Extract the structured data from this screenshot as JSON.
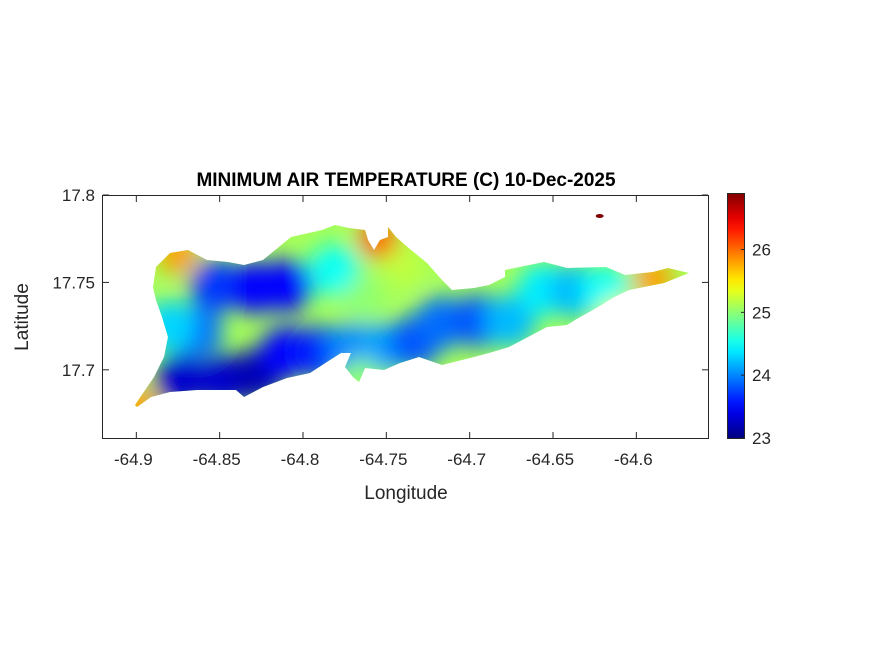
{
  "chart_data": {
    "type": "heatmap",
    "title": "MINIMUM AIR TEMPERATURE (C) 10-Dec-2025",
    "xlabel": "Longitude",
    "ylabel": "Latitude",
    "xlim": [
      -64.92,
      -64.557
    ],
    "ylim": [
      17.661,
      17.8
    ],
    "xticks": [
      -64.9,
      -64.85,
      -64.8,
      -64.75,
      -64.7,
      -64.65,
      -64.6
    ],
    "xtick_labels": [
      "-64.9",
      "-64.85",
      "-64.8",
      "-64.75",
      "-64.7",
      "-64.65",
      "-64.6"
    ],
    "yticks": [
      17.7,
      17.75,
      17.8
    ],
    "ytick_labels": [
      "17.7",
      "17.75",
      "17.8"
    ],
    "colormap": "jet",
    "clim": [
      23,
      26.9
    ],
    "colorbar_ticks": [
      23,
      24,
      25,
      26
    ],
    "colorbar_tick_labels": [
      "23",
      "24",
      "25",
      "26"
    ],
    "colorbar_location": "right",
    "base_value": 25.1,
    "samples": [
      {
        "lon": -64.852,
        "lat": 17.748,
        "value": 23.7
      },
      {
        "lon": -64.829,
        "lat": 17.747,
        "value": 23.5
      },
      {
        "lon": -64.81,
        "lat": 17.748,
        "value": 23.5
      },
      {
        "lon": -64.864,
        "lat": 17.722,
        "value": 23.9
      },
      {
        "lon": -64.88,
        "lat": 17.725,
        "value": 24.3
      },
      {
        "lon": -64.873,
        "lat": 17.694,
        "value": 23.3
      },
      {
        "lon": -64.848,
        "lat": 17.694,
        "value": 23.3
      },
      {
        "lon": -64.828,
        "lat": 17.697,
        "value": 23.2
      },
      {
        "lon": -64.81,
        "lat": 17.71,
        "value": 23.5
      },
      {
        "lon": -64.79,
        "lat": 17.71,
        "value": 23.6
      },
      {
        "lon": -64.771,
        "lat": 17.712,
        "value": 24.0
      },
      {
        "lon": -64.754,
        "lat": 17.712,
        "value": 24.1
      },
      {
        "lon": -64.733,
        "lat": 17.716,
        "value": 23.8
      },
      {
        "lon": -64.717,
        "lat": 17.727,
        "value": 23.9
      },
      {
        "lon": -64.695,
        "lat": 17.728,
        "value": 23.8
      },
      {
        "lon": -64.676,
        "lat": 17.728,
        "value": 24.2
      },
      {
        "lon": -64.781,
        "lat": 17.757,
        "value": 24.5
      },
      {
        "lon": -64.764,
        "lat": 17.741,
        "value": 25.0
      },
      {
        "lon": -64.656,
        "lat": 17.746,
        "value": 24.4
      },
      {
        "lon": -64.637,
        "lat": 17.745,
        "value": 24.2
      },
      {
        "lon": -64.618,
        "lat": 17.745,
        "value": 24.5
      },
      {
        "lon": -64.74,
        "lat": 17.76,
        "value": 25.2
      },
      {
        "lon": -64.59,
        "lat": 17.752,
        "value": 25.8
      },
      {
        "lon": -64.875,
        "lat": 17.766,
        "value": 25.8
      },
      {
        "lon": -64.755,
        "lat": 17.775,
        "value": 26.0
      },
      {
        "lon": -64.899,
        "lat": 17.679,
        "value": 25.8
      },
      {
        "lon": -64.765,
        "lat": 17.695,
        "value": 25.0
      },
      {
        "lon": -64.61,
        "lat": 17.73,
        "value": 25.4
      }
    ],
    "islet": {
      "lon": -64.622,
      "lat": 17.788,
      "value": 26.9
    }
  }
}
